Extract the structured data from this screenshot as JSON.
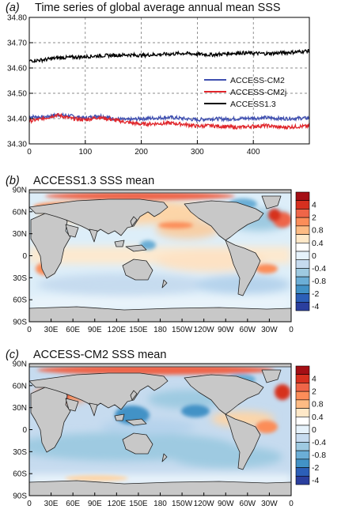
{
  "chart_data": [
    {
      "type": "line",
      "panel_label": "(a)",
      "title": "Time series of global average annual mean SSS",
      "xlabel": "",
      "ylabel": "",
      "xlim": [
        0,
        500
      ],
      "ylim": [
        34.3,
        34.8
      ],
      "x_ticks": [
        "0",
        "100",
        "200",
        "300",
        "400"
      ],
      "y_ticks": [
        "34.80",
        "34.70",
        "34.60",
        "34.50",
        "34.40",
        "34.30"
      ],
      "grid": true,
      "legend_position": "right",
      "x_knots": [
        0,
        25,
        50,
        75,
        100,
        125,
        150,
        175,
        200,
        225,
        250,
        275,
        300,
        325,
        350,
        375,
        400,
        425,
        450,
        475,
        500
      ],
      "series": [
        {
          "name": "ACCESS-CM2",
          "color": "#3f4fb0",
          "values": [
            34.408,
            34.405,
            34.415,
            34.41,
            34.402,
            34.412,
            34.4,
            34.395,
            34.4,
            34.402,
            34.405,
            34.4,
            34.395,
            34.4,
            34.398,
            34.4,
            34.402,
            34.403,
            34.4,
            34.401,
            34.402
          ]
        },
        {
          "name": "ACCESS-CM2j",
          "color": "#e0262b",
          "values": [
            34.39,
            34.4,
            34.415,
            34.4,
            34.395,
            34.405,
            34.395,
            34.385,
            34.378,
            34.38,
            34.382,
            34.378,
            34.37,
            34.372,
            34.368,
            34.365,
            34.37,
            34.372,
            34.365,
            34.368,
            34.37
          ]
        },
        {
          "name": "ACCESS1.3",
          "color": "#000000",
          "values": [
            34.628,
            34.632,
            34.64,
            34.642,
            34.645,
            34.648,
            34.65,
            34.652,
            34.65,
            34.653,
            34.655,
            34.658,
            34.655,
            34.652,
            34.656,
            34.66,
            34.658,
            34.657,
            34.66,
            34.663,
            34.668
          ]
        }
      ]
    },
    {
      "type": "heatmap",
      "panel_label": "(b)",
      "title": "ACCESS1.3 SSS mean",
      "x_ticks": [
        "0",
        "30E",
        "60E",
        "90E",
        "120E",
        "150E",
        "180",
        "150W",
        "120W",
        "90W",
        "60W",
        "30W",
        "0"
      ],
      "y_ticks": [
        "90N",
        "60N",
        "30N",
        "0",
        "30S",
        "60S",
        "90S"
      ],
      "colorbar_labels": [
        "4",
        "2",
        "0.8",
        "0.4",
        "0",
        "-0.4",
        "-0.8",
        "-2",
        "-4"
      ],
      "colorbar_colors": [
        "#a50f15",
        "#d7301f",
        "#ef6548",
        "#fc8d59",
        "#fdbb84",
        "#fee8c8",
        "#ffffff",
        "#e6f2fb",
        "#c6dbef",
        "#9ecae1",
        "#6baed6",
        "#4292c6",
        "#2c5fb8",
        "#2b3f9e"
      ]
    },
    {
      "type": "heatmap",
      "panel_label": "(c)",
      "title": "ACCESS-CM2 SSS mean",
      "x_ticks": [
        "0",
        "30E",
        "60E",
        "90E",
        "120E",
        "150E",
        "180",
        "150W",
        "120W",
        "90W",
        "60W",
        "30W",
        "0"
      ],
      "y_ticks": [
        "90N",
        "60N",
        "30N",
        "0",
        "30S",
        "60S",
        "90S"
      ],
      "colorbar_labels": [
        "4",
        "2",
        "0.8",
        "0.4",
        "0",
        "-0.4",
        "-0.8",
        "-2",
        "-4"
      ],
      "colorbar_colors": [
        "#a50f15",
        "#d7301f",
        "#ef6548",
        "#fc8d59",
        "#fdbb84",
        "#fee8c8",
        "#ffffff",
        "#e6f2fb",
        "#c6dbef",
        "#9ecae1",
        "#6baed6",
        "#4292c6",
        "#2c5fb8",
        "#2b3f9e"
      ]
    }
  ]
}
